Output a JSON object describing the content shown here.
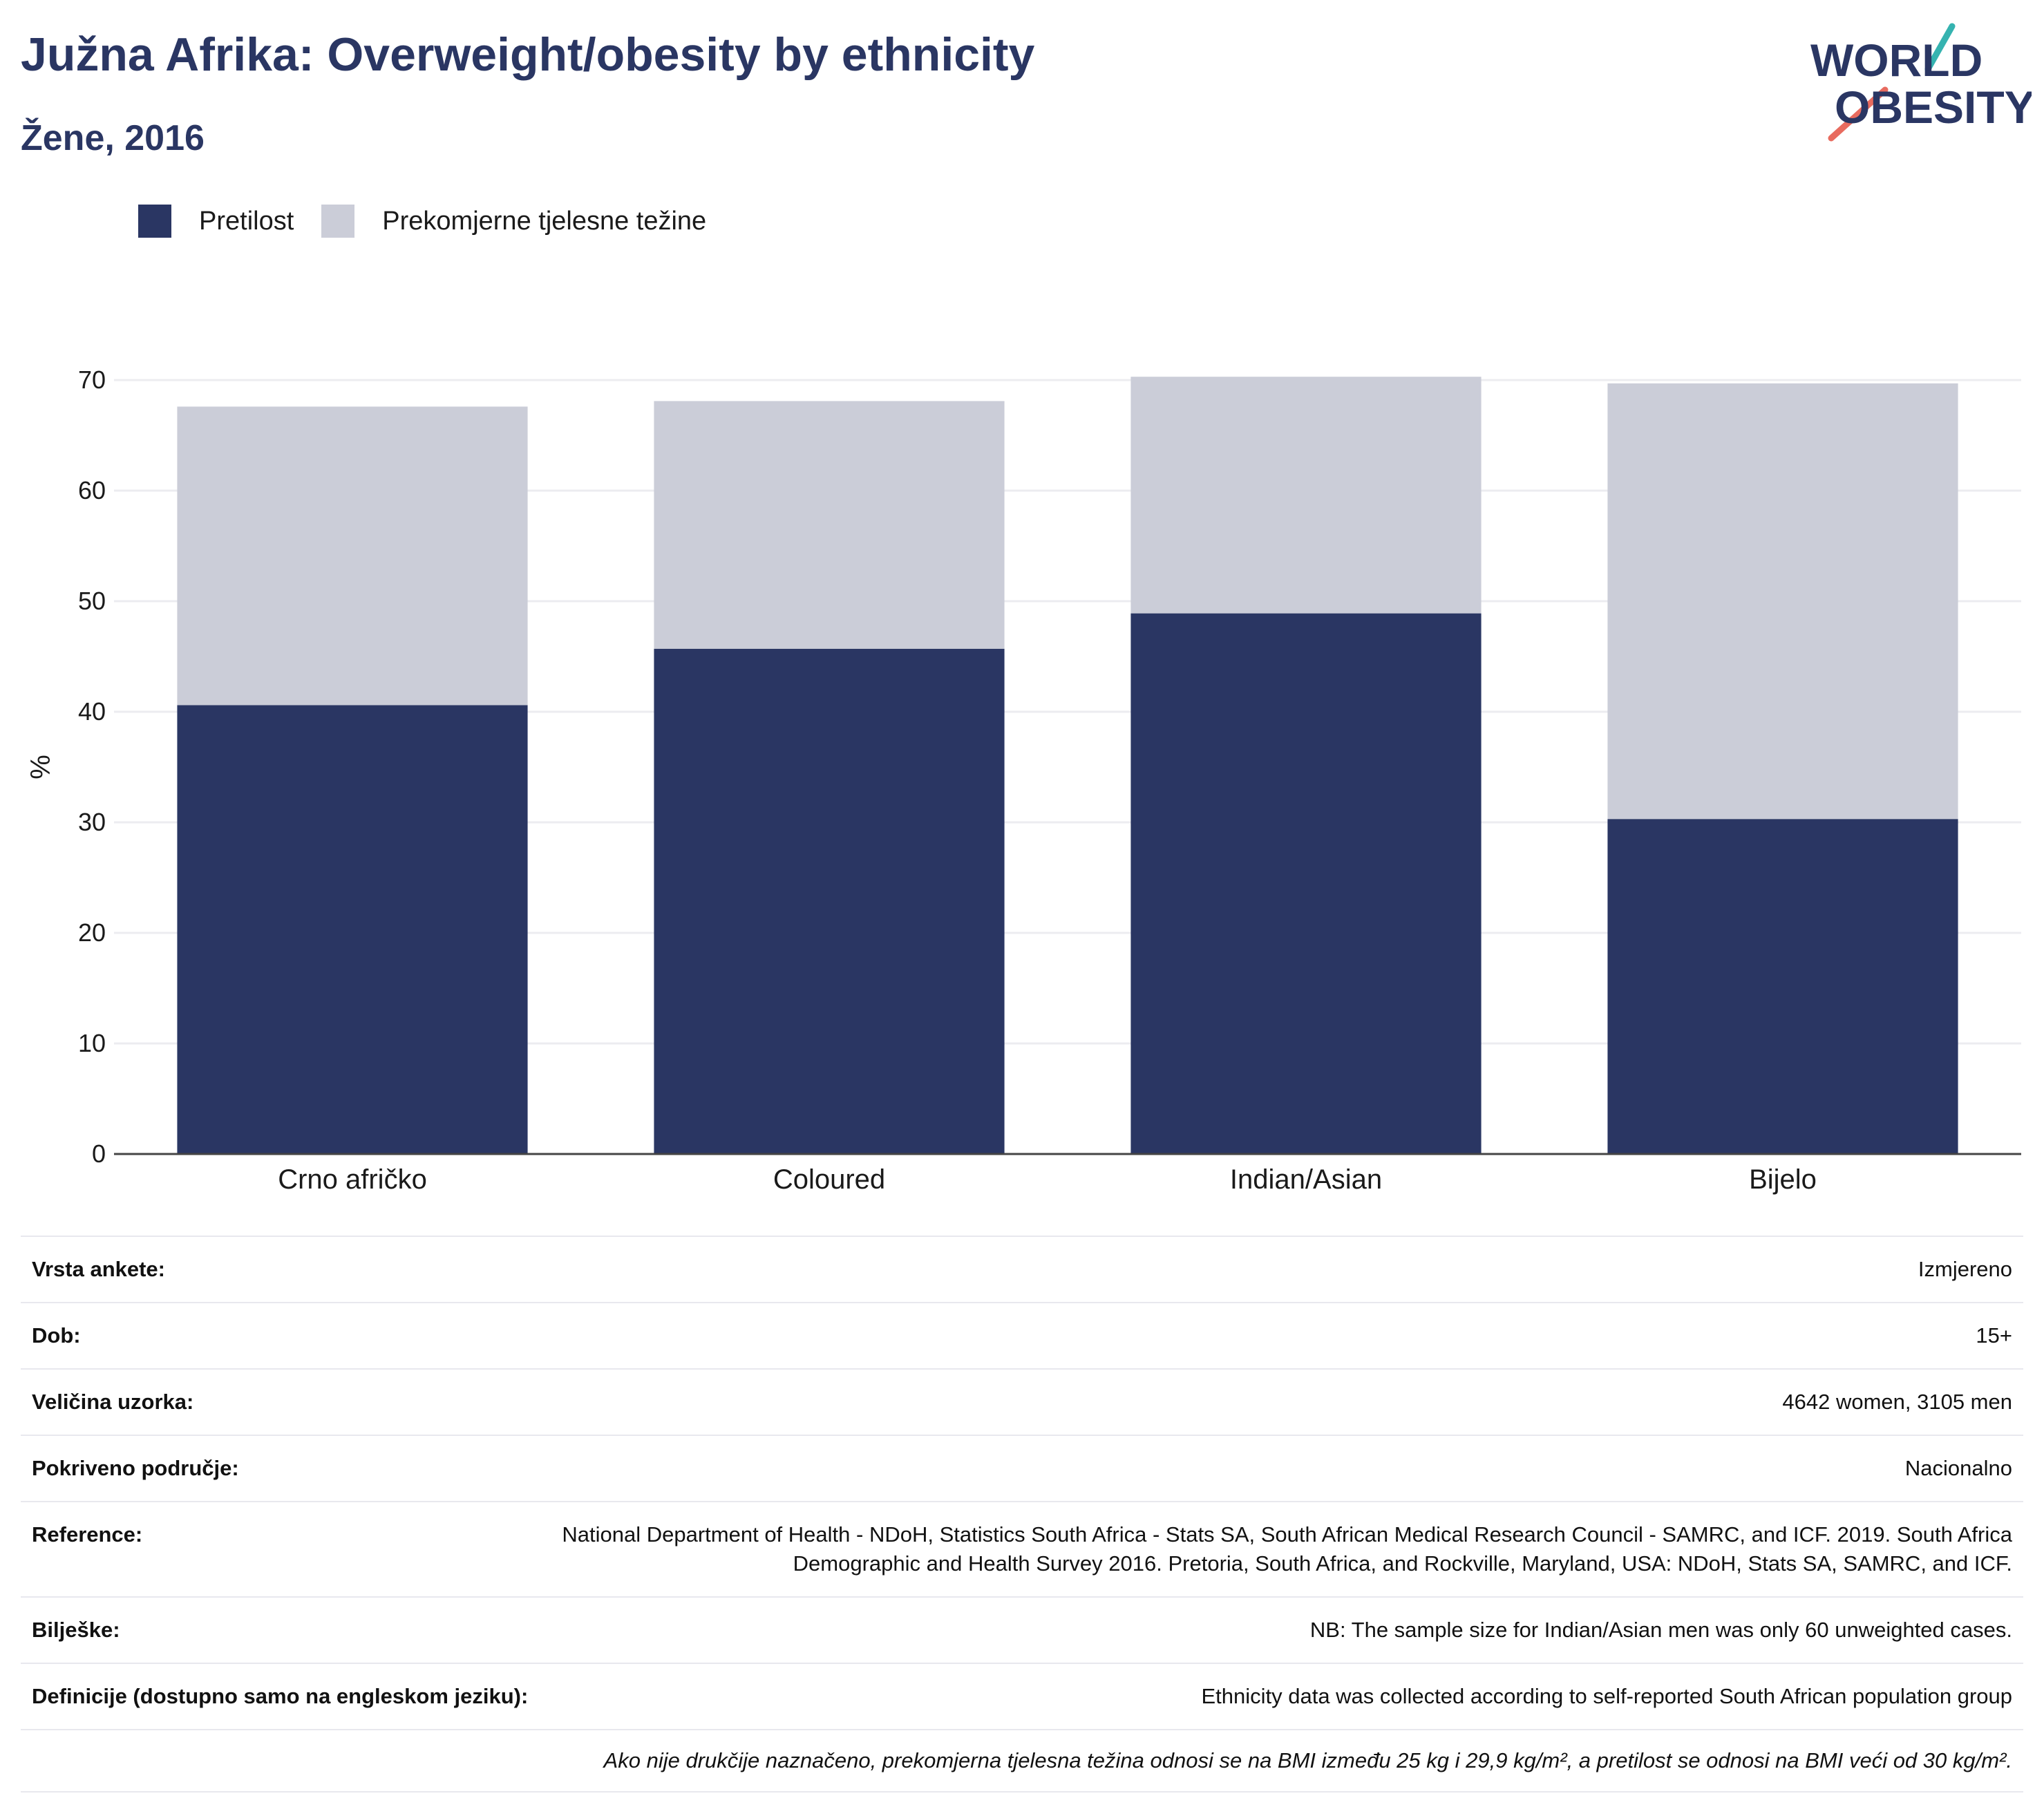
{
  "header": {
    "title": "Južna Afrika: Overweight/obesity by ethnicity",
    "subtitle": "Žene, 2016"
  },
  "logo": {
    "line1": "WORLD",
    "line2": "OBESITY",
    "accent_teal": "#35b3b0",
    "accent_coral": "#e86b5f",
    "text_color": "#2a3663"
  },
  "colors": {
    "obesity": "#2a3663",
    "overweight": "#cbcdd8"
  },
  "chart_data": {
    "type": "bar",
    "stacked": true,
    "categories": [
      "Crno afričko",
      "Coloured",
      "Indian/Asian",
      "Bijelo"
    ],
    "series": [
      {
        "name": "Pretilost",
        "values": [
          40.6,
          45.7,
          48.9,
          30.3
        ]
      },
      {
        "name": "Prekomjerne tjelesne težine",
        "values": [
          27.0,
          22.4,
          21.4,
          39.4
        ]
      }
    ],
    "ylabel": "%",
    "ylim": [
      0,
      70
    ],
    "yticks": [
      0,
      10,
      20,
      30,
      40,
      50,
      60,
      70
    ],
    "grid": true,
    "legend": "top-left"
  },
  "info": [
    {
      "key": "Vrsta ankete:",
      "value": "Izmjereno"
    },
    {
      "key": "Dob:",
      "value": "15+"
    },
    {
      "key": "Veličina uzorka:",
      "value": "4642 women, 3105 men"
    },
    {
      "key": "Pokriveno područje:",
      "value": "Nacionalno"
    },
    {
      "key": "Reference:",
      "value": "National Department of Health - NDoH, Statistics South Africa - Stats SA, South African Medical Research Council - SAMRC, and ICF. 2019. South Africa Demographic and Health Survey 2016. Pretoria, South Africa, and Rockville, Maryland, USA: NDoH, Stats SA, SAMRC, and ICF."
    },
    {
      "key": "Bilješke:",
      "value": "NB: The sample size for Indian/Asian men was only 60 unweighted cases."
    },
    {
      "key": "Definicije (dostupno samo na engleskom jeziku):",
      "value": "Ethnicity data was collected according to self-reported South African population group"
    }
  ],
  "footnote": "Ako nije drukčije naznačeno, prekomjerna tjelesna težina odnosi se na BMI između 25 kg i 29,9 kg/m², a pretilost se odnosi na BMI veći od 30 kg/m²."
}
